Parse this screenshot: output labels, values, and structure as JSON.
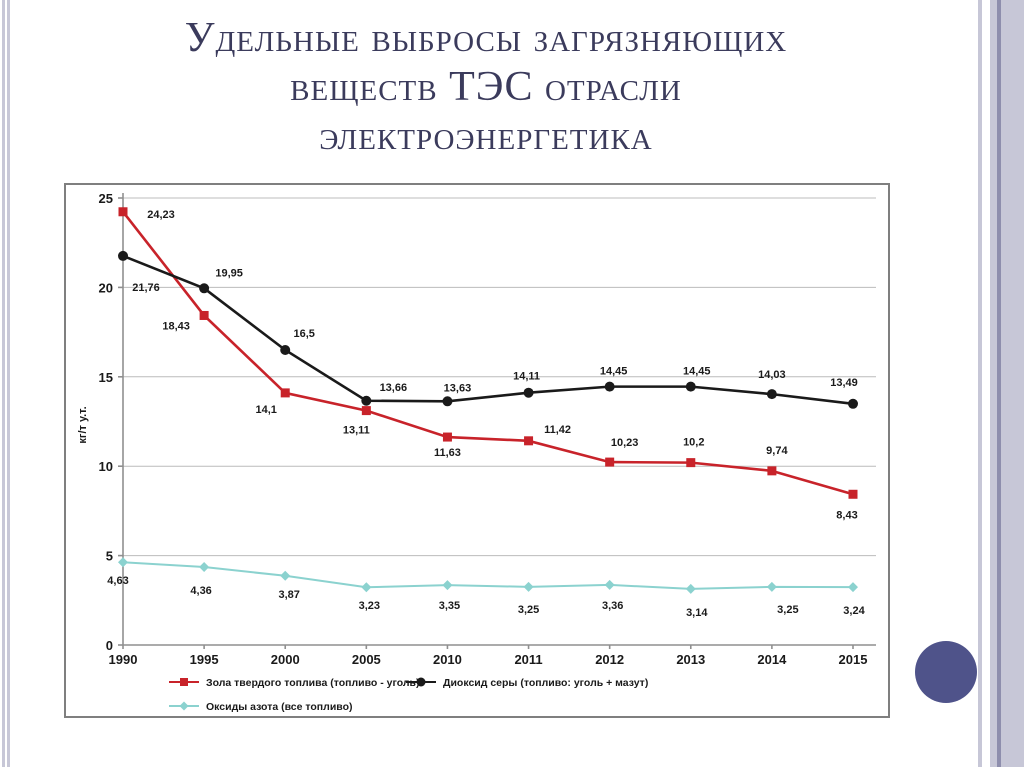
{
  "slide": {
    "title_lines": [
      "Удельные выбросы загрязняющих",
      "веществ ТЭС отрасли",
      "электроэнергетика"
    ],
    "title_color": "#3b3b5c",
    "accent_circle_color": "#4f538a",
    "stripe_light_color": "#c7c7d7",
    "stripe_dark_color": "#8e8ead"
  },
  "chart_data": {
    "type": "line",
    "title": "",
    "xlabel": "",
    "ylabel": "кг/т у.т.",
    "ylim": [
      0,
      25
    ],
    "yticks": [
      0,
      5,
      10,
      15,
      20,
      25
    ],
    "grid": true,
    "legend_position": "bottom",
    "categories": [
      "1990",
      "1995",
      "2000",
      "2005",
      "2010",
      "2011",
      "2012",
      "2013",
      "2014",
      "2015"
    ],
    "series": [
      {
        "name": "Зола твердого топлива (топливо - уголь)",
        "color": "#c8232a",
        "marker": "square",
        "values": [
          24.23,
          18.43,
          14.1,
          13.11,
          11.63,
          11.42,
          10.23,
          10.2,
          9.74,
          8.43
        ],
        "labels": [
          "24,23",
          "18,43",
          "14,1",
          "13,11",
          "11,63",
          "11,42",
          "10,23",
          "10,2",
          "9,74",
          "8,43"
        ]
      },
      {
        "name": "Диоксид серы (топливо: уголь + мазут)",
        "color": "#1a1a1a",
        "marker": "circle",
        "values": [
          21.76,
          19.95,
          16.5,
          13.66,
          13.63,
          14.11,
          14.45,
          14.45,
          14.03,
          13.49
        ],
        "labels": [
          "21,76",
          "19,95",
          "16,5",
          "13,66",
          "13,63",
          "14,11",
          "14,45",
          "14,45",
          "14,03",
          "13,49"
        ]
      },
      {
        "name": "Оксиды азота (все топливо)",
        "color": "#8bd2cf",
        "marker": "diamond",
        "values": [
          4.63,
          4.36,
          3.87,
          3.23,
          3.35,
          3.25,
          3.36,
          3.14,
          3.25,
          3.24
        ],
        "labels": [
          "4,63",
          "4,36",
          "3,87",
          "3,23",
          "3,35",
          "3,25",
          "3,36",
          "3,14",
          "3,25",
          "3,24"
        ]
      }
    ]
  }
}
